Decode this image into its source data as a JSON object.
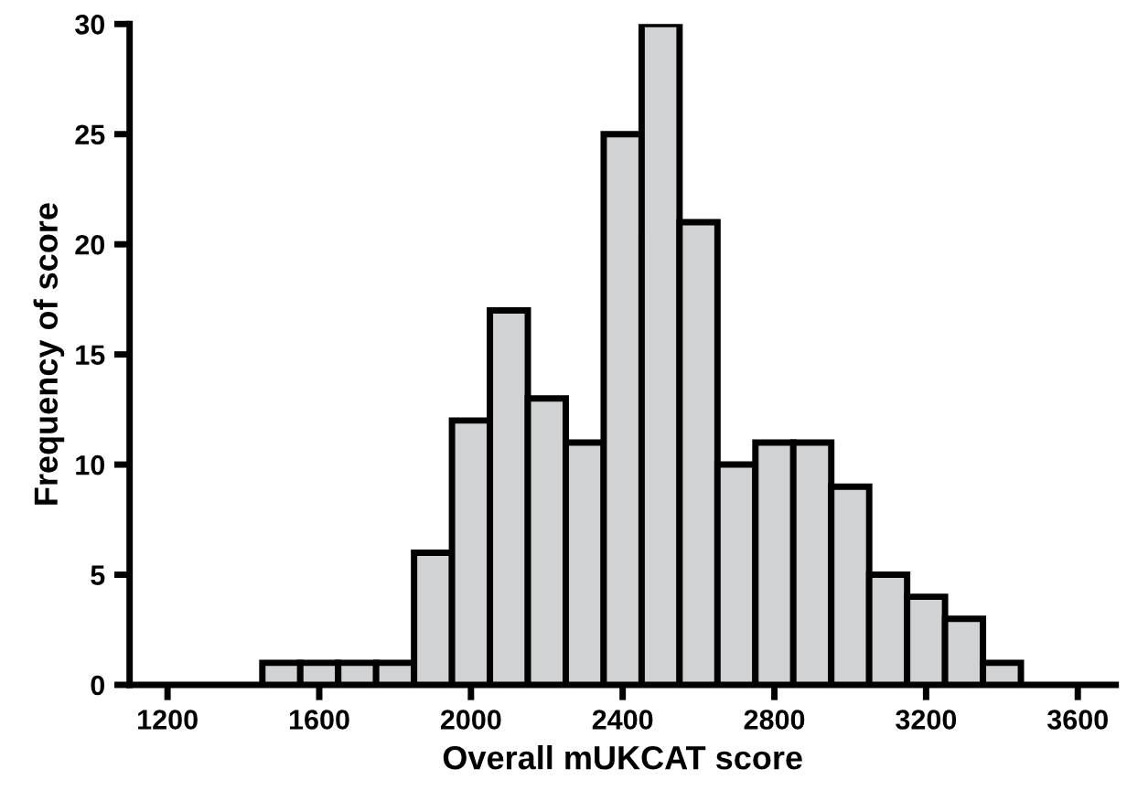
{
  "chart_data": {
    "type": "histogram",
    "xlabel": "Overall mUKCAT score",
    "ylabel": "Frequency of score",
    "bins": [
      1450,
      1550,
      1650,
      1750,
      1850,
      1950,
      2050,
      2150,
      2250,
      2350,
      2450,
      2550,
      2650,
      2750,
      2850,
      2950,
      3050,
      3150,
      3250,
      3350,
      3450
    ],
    "values": [
      1,
      1,
      1,
      1,
      6,
      12,
      17,
      13,
      11,
      25,
      30,
      21,
      10,
      11,
      11,
      9,
      5,
      4,
      3,
      1
    ],
    "color": "#d1d2d4",
    "xlim": [
      1100,
      3700
    ],
    "xticks": [
      1200,
      1600,
      2000,
      2400,
      2800,
      3200,
      3600
    ],
    "ylim": [
      0,
      30
    ],
    "yticks": [
      0,
      5,
      10,
      15,
      20,
      25,
      30
    ],
    "grid": false
  }
}
